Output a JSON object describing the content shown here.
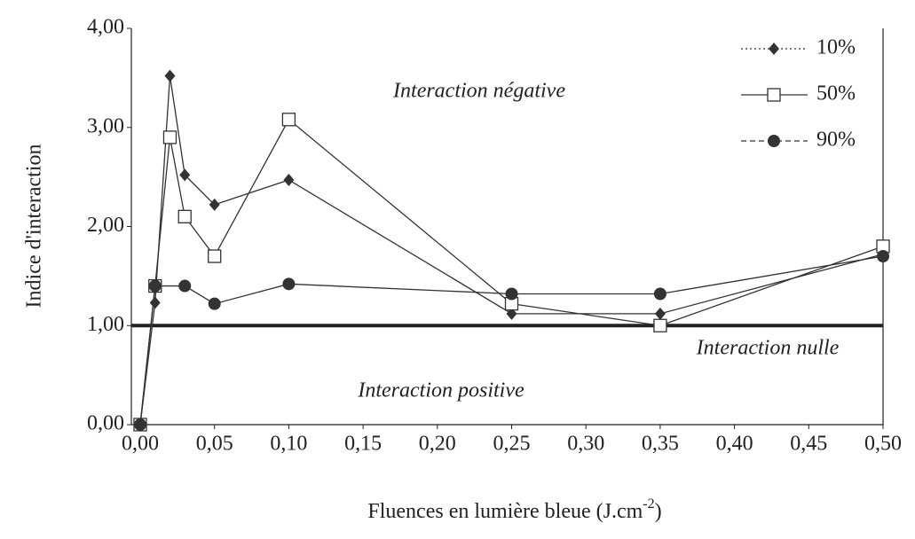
{
  "chart_data": {
    "type": "line",
    "x_label": "Fluences en lumière bleue (J.cm",
    "x_label_sup": "-2",
    "x_label_end": ")",
    "y_label": "Indice d'interaction",
    "annotations": [
      "Interaction négative",
      "Interaction nulle",
      "Interaction positive"
    ],
    "reference_line": 1,
    "xlim": [
      0,
      0.5
    ],
    "ylim": [
      0,
      4
    ],
    "xticks": [
      {
        "value": 0,
        "label": "0,00"
      },
      {
        "value": 0.05,
        "label": "0,05"
      },
      {
        "value": 0.1,
        "label": "0,10"
      },
      {
        "value": 0.15,
        "label": "0,15"
      },
      {
        "value": 0.2,
        "label": "0,20"
      },
      {
        "value": 0.25,
        "label": "0,25"
      },
      {
        "value": 0.3,
        "label": "0,30"
      },
      {
        "value": 0.35,
        "label": "0,35"
      },
      {
        "value": 0.4,
        "label": "0,40"
      },
      {
        "value": 0.45,
        "label": "0,45"
      },
      {
        "value": 0.5,
        "label": "0,50"
      }
    ],
    "yticks": [
      {
        "value": 0,
        "label": "0,00"
      },
      {
        "value": 1,
        "label": "1,00"
      },
      {
        "value": 2,
        "label": "2,00"
      },
      {
        "value": 3,
        "label": "3,00"
      },
      {
        "value": 4,
        "label": "4,00"
      }
    ],
    "legend": "upper right",
    "series": [
      {
        "name": "10%",
        "color": "#333333",
        "marker": "diamond",
        "dash": "dotted",
        "x": [
          0,
          0.01,
          0.02,
          0.03,
          0.05,
          0.1,
          0.25,
          0.35,
          0.5
        ],
        "values": [
          0,
          1.23,
          3.52,
          2.52,
          2.22,
          2.47,
          1.12,
          1.12,
          1.72
        ]
      },
      {
        "name": "50%",
        "color": "#333333",
        "marker": "square",
        "dash": "solid",
        "x": [
          0,
          0.01,
          0.02,
          0.03,
          0.05,
          0.1,
          0.25,
          0.35,
          0.5
        ],
        "values": [
          0,
          1.4,
          2.9,
          2.1,
          1.7,
          3.08,
          1.22,
          1.0,
          1.8
        ]
      },
      {
        "name": "90%",
        "color": "#333333",
        "marker": "circle",
        "dash": "dashed",
        "x": [
          0,
          0.01,
          0.03,
          0.05,
          0.1,
          0.25,
          0.35,
          0.5
        ],
        "values": [
          0,
          1.4,
          1.4,
          1.22,
          1.42,
          1.32,
          1.32,
          1.7
        ]
      }
    ]
  }
}
